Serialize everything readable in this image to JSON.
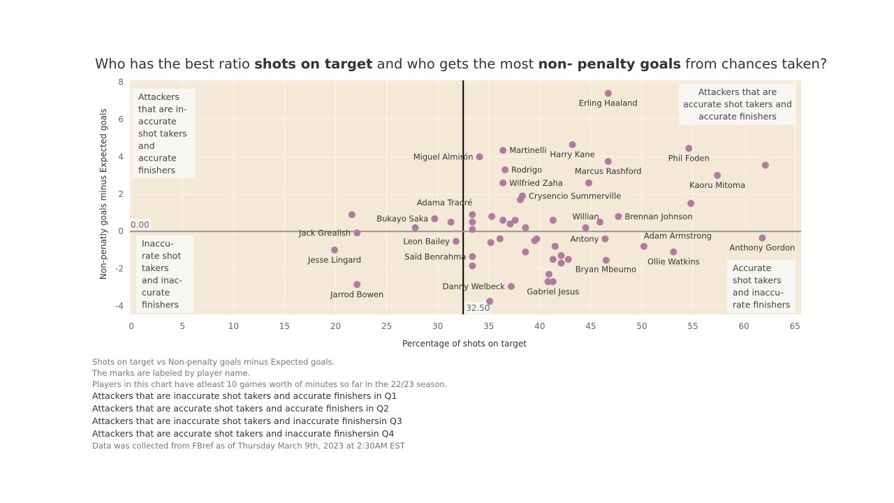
{
  "title_parts": [
    {
      "text": "Who has the best ratio ",
      "bold": false
    },
    {
      "text": "shots on target",
      "bold": true
    },
    {
      "text": " and who gets the most ",
      "bold": false
    },
    {
      "text": "non- penalty goals",
      "bold": true
    },
    {
      "text": " from chances taken?",
      "bold": false
    }
  ],
  "chart_data": {
    "type": "scatter",
    "xlabel": "Percentage of shots on target",
    "ylabel": "Non-penatly goals minus Expected goals",
    "xlim": [
      -0.15,
      65.6
    ],
    "ylim": [
      -4.45,
      8.1
    ],
    "xticks": [
      0,
      5,
      10,
      15,
      20,
      25,
      30,
      35,
      40,
      45,
      50,
      55,
      60,
      65
    ],
    "yticks": [
      -4,
      -2,
      0,
      2,
      4,
      6,
      8
    ],
    "grid": true,
    "colors": {
      "point": "#b07aa1",
      "background": "#f4e8d7",
      "ref_vertical": "#000000",
      "ref_horizontal": "#9a948c"
    },
    "reference_lines": [
      {
        "axis": "x",
        "value": 32.5,
        "label": "32.50"
      },
      {
        "axis": "y",
        "value": 0,
        "label": "0.00"
      }
    ],
    "annotations": [
      {
        "quadrant": "top-left",
        "lines": [
          "Attackers",
          "that are in-",
          "accurate",
          "shot takers",
          "and",
          "accurate",
          "finishers"
        ]
      },
      {
        "quadrant": "top-right",
        "lines": [
          "Attackers that are",
          "accurate shot takers and",
          "accurate finishers"
        ]
      },
      {
        "quadrant": "bottom-left",
        "lines": [
          "Inaccu-",
          "rate shot",
          "takers",
          "and inac-",
          "curate",
          "finishers"
        ]
      },
      {
        "quadrant": "bottom-right",
        "lines": [
          "Accurate",
          "shot takers",
          "and inaccu-",
          "rate finishers"
        ]
      }
    ],
    "points": [
      {
        "x": 46.7,
        "y": 7.4,
        "name": "Erling Haaland",
        "pos": "below"
      },
      {
        "x": 43.2,
        "y": 4.65,
        "name": "Harry Kane",
        "pos": "below"
      },
      {
        "x": 36.4,
        "y": 4.35,
        "name": "Martinelli",
        "pos": "right"
      },
      {
        "x": 34.1,
        "y": 4.0,
        "name": "Miguel Almirón",
        "pos": "left"
      },
      {
        "x": 36.6,
        "y": 3.3,
        "name": "Rodrigo",
        "pos": "right"
      },
      {
        "x": 36.4,
        "y": 2.6,
        "name": "Wilfried Zaha",
        "pos": "right"
      },
      {
        "x": 46.7,
        "y": 3.75,
        "name": "Marcus Rashford",
        "pos": "below"
      },
      {
        "x": 44.8,
        "y": 2.6
      },
      {
        "x": 54.6,
        "y": 4.45,
        "name": "Phil Foden",
        "pos": "below"
      },
      {
        "x": 57.4,
        "y": 3.0,
        "name": "Kaoru Mitoma",
        "pos": "below"
      },
      {
        "x": 62.1,
        "y": 3.55
      },
      {
        "x": 54.8,
        "y": 1.5
      },
      {
        "x": 38.3,
        "y": 1.9,
        "name": "Crysencio Summerville",
        "pos": "right"
      },
      {
        "x": 38.1,
        "y": 1.7
      },
      {
        "x": 33.4,
        "y": 0.9,
        "name": "Adama Traoré",
        "pos": "above-left"
      },
      {
        "x": 33.4,
        "y": 0.5
      },
      {
        "x": 33.4,
        "y": 0.1
      },
      {
        "x": 21.6,
        "y": 0.9
      },
      {
        "x": 22.1,
        "y": -0.08,
        "name": "Jack Grealish",
        "pos": "left"
      },
      {
        "x": 19.9,
        "y": -1.0,
        "name": "Jesse Lingard",
        "pos": "below"
      },
      {
        "x": 22.1,
        "y": -2.85,
        "name": "Jarrod Bowen",
        "pos": "below"
      },
      {
        "x": 29.7,
        "y": 0.68,
        "name": "Bukayo Saka",
        "pos": "left"
      },
      {
        "x": 27.8,
        "y": 0.2
      },
      {
        "x": 31.3,
        "y": 0.5
      },
      {
        "x": 31.8,
        "y": -0.53,
        "name": "Leon Bailey",
        "pos": "left"
      },
      {
        "x": 35.3,
        "y": 0.8
      },
      {
        "x": 36.4,
        "y": 0.6
      },
      {
        "x": 37.1,
        "y": 0.4
      },
      {
        "x": 37.6,
        "y": 0.6
      },
      {
        "x": 38.6,
        "y": 0.2
      },
      {
        "x": 41.3,
        "y": 0.6
      },
      {
        "x": 44.5,
        "y": 0.2,
        "name": "Willian",
        "pos": "above"
      },
      {
        "x": 45.9,
        "y": 0.5
      },
      {
        "x": 47.7,
        "y": 0.8,
        "name": "Brennan Johnson",
        "pos": "right"
      },
      {
        "x": 46.4,
        "y": -0.4,
        "name": "Antony",
        "pos": "left"
      },
      {
        "x": 50.2,
        "y": -0.8,
        "name": "Adam Armstrong",
        "pos": "above-right"
      },
      {
        "x": 53.1,
        "y": -1.1,
        "name": "Ollie Watkins",
        "pos": "below"
      },
      {
        "x": 61.8,
        "y": -0.35,
        "name": "Anthony Gordon",
        "pos": "below"
      },
      {
        "x": 46.5,
        "y": -1.55
      },
      {
        "x": 42.8,
        "y": -1.5,
        "name": "Bryan Mbeumo",
        "pos": "below-right"
      },
      {
        "x": 41.3,
        "y": -1.5
      },
      {
        "x": 42.1,
        "y": -1.3
      },
      {
        "x": 42.1,
        "y": -1.7
      },
      {
        "x": 41.5,
        "y": -0.8
      },
      {
        "x": 39.5,
        "y": -0.5
      },
      {
        "x": 39.7,
        "y": -0.4
      },
      {
        "x": 38.6,
        "y": -1.1
      },
      {
        "x": 35.2,
        "y": -0.6
      },
      {
        "x": 36.1,
        "y": -0.4
      },
      {
        "x": 33.4,
        "y": -1.35,
        "name": "Saïd Benrahma",
        "pos": "left"
      },
      {
        "x": 33.4,
        "y": -1.85
      },
      {
        "x": 40.9,
        "y": -2.3
      },
      {
        "x": 40.8,
        "y": -2.7
      },
      {
        "x": 41.3,
        "y": -2.7,
        "name": "Gabriel Jesus",
        "pos": "below"
      },
      {
        "x": 37.2,
        "y": -2.95,
        "name": "Danny Welbeck",
        "pos": "left"
      },
      {
        "x": 35.1,
        "y": -3.75
      }
    ]
  },
  "footer": {
    "notes": [
      "Shots on target vs Non-penalty goals minus Expected goals.",
      "The marks are labeled by player name.",
      "Players in this chart have atleast 10 games worth of minutes so far in the 22/23 season."
    ],
    "quadrants": [
      "Attackers that are inaccurate shot takers and accurate finishers in Q1",
      "Attackers that are accurate shot takers and accurate finishers in Q2",
      "Attackers that are inaccurate shot takers and inaccurate finishersin Q3",
      "Attackers that are accurate shot takers and inaccurate finishersin Q4"
    ],
    "source": "Data was collected from FBref as of Thursday March 9th, 2023 at 2:30AM EST"
  }
}
